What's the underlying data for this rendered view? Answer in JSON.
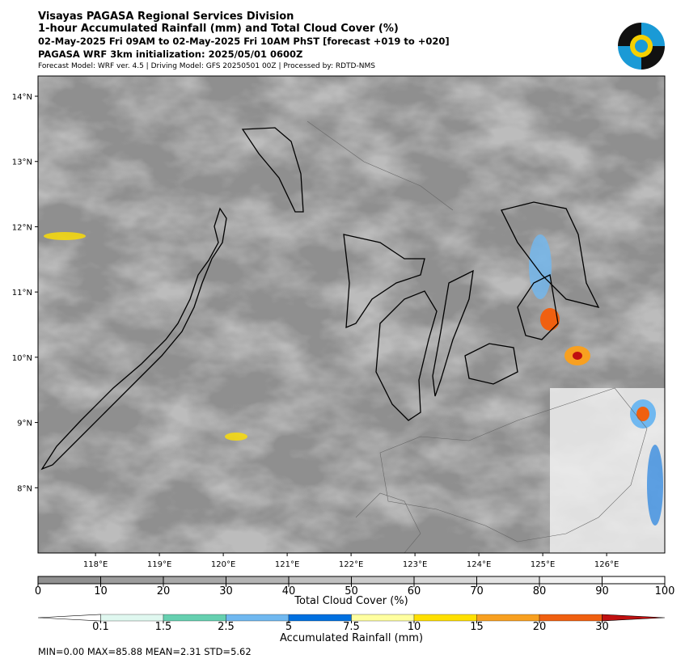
{
  "header": {
    "title": "Visayas PAGASA Regional Services Division",
    "subtitle": "1-hour Accumulated Rainfall (mm) and Total Cloud Cover (%)",
    "period": "02-May-2025 Fri 09AM to 02-May-2025 Fri 10AM PhST [forecast +019 to +020]",
    "init": "PAGASA WRF 3km initialization: 2025/05/01 0600Z",
    "model": "Forecast Model: WRF ver. 4.5 | Driving Model: GFS 20250501 00Z | Processed by: RDTD-NMS"
  },
  "map": {
    "lonlim": [
      117.1,
      126.91
    ],
    "latlim": [
      7.0,
      14.31
    ],
    "lat_ticks": [
      {
        "value": 14,
        "label": "14°N"
      },
      {
        "value": 13,
        "label": "13°N"
      },
      {
        "value": 12,
        "label": "12°N"
      },
      {
        "value": 11,
        "label": "11°N"
      },
      {
        "value": 10,
        "label": "10°N"
      },
      {
        "value": 9,
        "label": "9°N"
      },
      {
        "value": 8,
        "label": "8°N"
      }
    ],
    "lon_ticks": [
      {
        "value": 118,
        "label": "118°E"
      },
      {
        "value": 119,
        "label": "119°E"
      },
      {
        "value": 120,
        "label": "120°E"
      },
      {
        "value": 121,
        "label": "121°E"
      },
      {
        "value": 122,
        "label": "122°E"
      },
      {
        "value": 123,
        "label": "123°E"
      },
      {
        "value": 124,
        "label": "124°E"
      },
      {
        "value": 125,
        "label": "125°E"
      },
      {
        "value": 126,
        "label": "126°E"
      }
    ]
  },
  "cloud_colorbar": {
    "label": "Total Cloud Cover (%)",
    "ticks": [
      0,
      10,
      20,
      30,
      40,
      50,
      60,
      70,
      80,
      90,
      100
    ],
    "colors": [
      "#909090",
      "#9c9c9c",
      "#a8a8a8",
      "#b4b4b4",
      "#c0c0c0",
      "#cccccc",
      "#d8d8d8",
      "#e4e4e4",
      "#f0f0f0",
      "#ffffff"
    ]
  },
  "rain_colorbar": {
    "label": "Accumulated Rainfall (mm)",
    "ticks": [
      0.1,
      1.5,
      2.5,
      5,
      7.5,
      10,
      15,
      20,
      30
    ],
    "colors": [
      "#ffffff",
      "#e0f8f0",
      "#66d0b0",
      "#70b8f0",
      "#0070e0",
      "#ffffa0",
      "#ffe000",
      "#f8a020",
      "#f06010",
      "#c01010"
    ]
  },
  "stats": "MIN=0.00   MAX=85.88   MEAN=2.31   STD=5.62"
}
